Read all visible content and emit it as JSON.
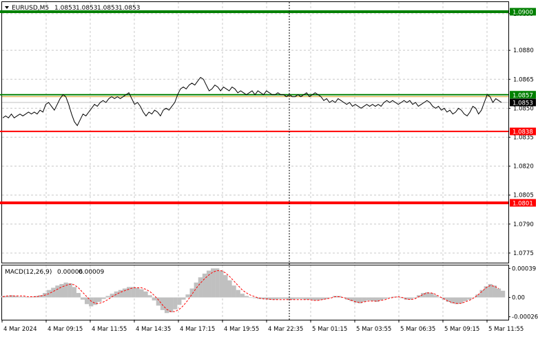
{
  "chart_data": [
    {
      "type": "line",
      "header": {
        "symbol": "EURUSD,M5",
        "ohlc": [
          "1.0853",
          "1.0853",
          "1.0853",
          "1.0853"
        ]
      },
      "ylim": [
        1.077,
        1.0905
      ],
      "y_ticks": [
        "1.0899",
        "1.0880",
        "1.0865",
        "1.0850",
        "1.0835",
        "1.0820",
        "1.0805",
        "1.0790",
        "1.0775"
      ],
      "x_ticks": [
        "4 Mar 2024",
        "4 Mar 09:15",
        "4 Mar 11:55",
        "4 Mar 14:35",
        "4 Mar 17:15",
        "4 Mar 19:55",
        "4 Mar 22:35",
        "5 Mar 01:15",
        "5 Mar 03:55",
        "5 Mar 06:35",
        "5 Mar 09:15",
        "5 Mar 11:55"
      ],
      "levels": [
        {
          "value": 1.09,
          "label": "1.0900",
          "color": "#008000",
          "kind": "green-line"
        },
        {
          "value": 1.0857,
          "label": "1.0857",
          "color": "#008000",
          "kind": "green-line"
        },
        {
          "value": 1.0838,
          "label": "1.0838",
          "color": "#ff0000",
          "kind": "red-line"
        },
        {
          "value": 1.0801,
          "label": "1.0801",
          "color": "#ff0000",
          "kind": "red-line"
        }
      ],
      "bid_line": {
        "value": 1.0856,
        "color": "#d4a020"
      },
      "ask_line": {
        "value": 1.0853,
        "color": "#c0c0c0"
      },
      "current_price": {
        "value": 1.0853,
        "label": "1.0853"
      },
      "series": [
        {
          "values": [
            1.0845,
            1.0846,
            1.0845,
            1.0847,
            1.0845,
            1.0846,
            1.0847,
            1.0846,
            1.0847,
            1.0848,
            1.0847,
            1.0848,
            1.0847,
            1.0849,
            1.0848,
            1.0852,
            1.0853,
            1.0851,
            1.0849,
            1.0852,
            1.0855,
            1.0857,
            1.0856,
            1.0852,
            1.0847,
            1.0843,
            1.0841,
            1.0844,
            1.0847,
            1.0846,
            1.0848,
            1.085,
            1.0852,
            1.0851,
            1.0853,
            1.0854,
            1.0853,
            1.0855,
            1.0856,
            1.0855,
            1.0856,
            1.0855,
            1.0856,
            1.0857,
            1.0858,
            1.0855,
            1.0852,
            1.0853,
            1.0851,
            1.0848,
            1.0846,
            1.0848,
            1.0847,
            1.0849,
            1.0848,
            1.0846,
            1.0849,
            1.085,
            1.0849,
            1.0851,
            1.0853,
            1.0857,
            1.086,
            1.0861,
            1.086,
            1.0862,
            1.0863,
            1.0862,
            1.0864,
            1.0866,
            1.0865,
            1.0862,
            1.0859,
            1.086,
            1.0862,
            1.0861,
            1.0859,
            1.0861,
            1.086,
            1.0859,
            1.0861,
            1.086,
            1.0858,
            1.0859,
            1.0858,
            1.0857,
            1.0858,
            1.0859,
            1.0857,
            1.0859,
            1.0858,
            1.0857,
            1.0859,
            1.0858,
            1.0857,
            1.0857,
            1.0858,
            1.0857,
            1.0857,
            1.0856,
            1.0857,
            1.0856,
            1.0856,
            1.0857,
            1.0856,
            1.0857,
            1.0858,
            1.0856,
            1.0857,
            1.0858,
            1.0857,
            1.0856,
            1.0854,
            1.0855,
            1.0853,
            1.0854,
            1.0853,
            1.0855,
            1.0854,
            1.0853,
            1.0852,
            1.0853,
            1.0851,
            1.0852,
            1.0851,
            1.085,
            1.0851,
            1.0852,
            1.0851,
            1.0852,
            1.0851,
            1.0852,
            1.0851,
            1.0853,
            1.0854,
            1.0853,
            1.0854,
            1.0853,
            1.0852,
            1.0853,
            1.0854,
            1.0853,
            1.0854,
            1.0852,
            1.0853,
            1.0851,
            1.0852,
            1.0853,
            1.0854,
            1.0853,
            1.0851,
            1.085,
            1.0851,
            1.0849,
            1.085,
            1.0848,
            1.0849,
            1.0847,
            1.0848,
            1.085,
            1.0849,
            1.0847,
            1.0846,
            1.0848,
            1.0851,
            1.085,
            1.0847,
            1.0849,
            1.0853,
            1.0857,
            1.0856,
            1.0853,
            1.0855,
            1.0854,
            1.0853
          ]
        }
      ]
    },
    {
      "type": "bar",
      "header": {
        "name": "MACD(12,26,9)",
        "values": [
          "0.00006",
          "0.00009"
        ]
      },
      "ylim": [
        -0.0003,
        0.00043
      ],
      "y_ticks": [
        "0.00039",
        "0.00",
        "-0.00026"
      ],
      "series": [
        {
          "type": "histogram",
          "color": "#c0c0c0",
          "values": [
            2e-05,
            2e-05,
            3e-05,
            2e-05,
            1e-05,
            1e-05,
            0.0,
            1e-05,
            2e-05,
            3e-05,
            6e-05,
            0.0001,
            0.00013,
            0.00016,
            0.00018,
            0.0002,
            0.00019,
            0.00014,
            6e-05,
            -3e-05,
            -9e-05,
            -0.00012,
            -0.0001,
            -6e-05,
            -2e-05,
            2e-05,
            5e-05,
            8e-05,
            0.0001,
            0.00012,
            0.00014,
            0.00014,
            0.00013,
            0.00011,
            8e-05,
            3e-05,
            -4e-05,
            -0.00011,
            -0.00017,
            -0.00021,
            -0.0002,
            -0.00016,
            -0.0001,
            -3e-05,
            4e-05,
            0.00012,
            0.0002,
            0.00027,
            0.00032,
            0.00036,
            0.00039,
            0.00039,
            0.00036,
            0.0003,
            0.00023,
            0.00016,
            0.0001,
            5e-05,
            2e-05,
            0.0,
            -1e-05,
            -2e-05,
            -2e-05,
            -3e-05,
            -3e-05,
            -3e-05,
            -2e-05,
            -2e-05,
            -3e-05,
            -3e-05,
            -2e-05,
            -2e-05,
            -3e-05,
            -3e-05,
            -4e-05,
            -4e-05,
            -3e-05,
            -2e-05,
            0.0,
            2e-05,
            2e-05,
            0.0,
            -3e-05,
            -5e-05,
            -7e-05,
            -8e-05,
            -6e-05,
            -4e-05,
            -5e-05,
            -6e-05,
            -4e-05,
            -2e-05,
            0.0,
            1e-05,
            1e-05,
            -1e-05,
            -3e-05,
            -3e-05,
            -1e-05,
            3e-05,
            6e-05,
            7e-05,
            6e-05,
            3e-05,
            0.0,
            -3e-05,
            -6e-05,
            -8e-05,
            -9e-05,
            -8e-05,
            -5e-05,
            -3e-05,
            0.0,
            4e-05,
            0.0001,
            0.00015,
            0.00018,
            0.00016,
            0.00012,
            9e-05
          ]
        },
        {
          "type": "signal-line",
          "color": "#ff0000",
          "values": [
            1e-05,
            2e-05,
            2e-05,
            2e-05,
            2e-05,
            2e-05,
            1e-05,
            1e-05,
            1e-05,
            2e-05,
            3e-05,
            5e-05,
            8e-05,
            0.00011,
            0.00014,
            0.00016,
            0.00018,
            0.00017,
            0.00013,
            7e-05,
            1e-05,
            -5e-05,
            -8e-05,
            -8e-05,
            -6e-05,
            -3e-05,
            1e-05,
            4e-05,
            7e-05,
            9e-05,
            0.00011,
            0.00013,
            0.00013,
            0.00013,
            0.00011,
            8e-05,
            3e-05,
            -3e-05,
            -0.0001,
            -0.00016,
            -0.00019,
            -0.00019,
            -0.00016,
            -0.00011,
            -4e-05,
            4e-05,
            0.00012,
            0.00019,
            0.00025,
            0.0003,
            0.00034,
            0.00036,
            0.00036,
            0.00033,
            0.00028,
            0.00022,
            0.00016,
            0.0001,
            6e-05,
            3e-05,
            1e-05,
            -1e-05,
            -2e-05,
            -2e-05,
            -3e-05,
            -3e-05,
            -3e-05,
            -3e-05,
            -3e-05,
            -3e-05,
            -3e-05,
            -3e-05,
            -3e-05,
            -3e-05,
            -4e-05,
            -4e-05,
            -3e-05,
            -2e-05,
            -1e-05,
            1e-05,
            1e-05,
            0.0,
            -2e-05,
            -4e-05,
            -6e-05,
            -7e-05,
            -6e-05,
            -5e-05,
            -5e-05,
            -5e-05,
            -4e-05,
            -3e-05,
            -1e-05,
            0.0,
            1e-05,
            0.0,
            -2e-05,
            -3e-05,
            -2e-05,
            1e-05,
            4e-05,
            6e-05,
            6e-05,
            4e-05,
            1e-05,
            -2e-05,
            -5e-05,
            -7e-05,
            -8e-05,
            -8e-05,
            -6e-05,
            -4e-05,
            -1e-05,
            3e-05,
            8e-05,
            0.00013,
            0.00016,
            0.00015,
            0.00012
          ]
        }
      ]
    }
  ]
}
